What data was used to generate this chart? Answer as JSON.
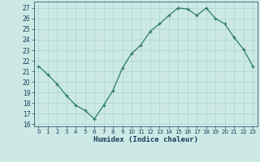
{
  "x": [
    0,
    1,
    2,
    3,
    4,
    5,
    6,
    7,
    8,
    9,
    10,
    11,
    12,
    13,
    14,
    15,
    16,
    17,
    18,
    19,
    20,
    21,
    22,
    23
  ],
  "y": [
    21.5,
    20.7,
    19.8,
    18.7,
    17.8,
    17.3,
    16.5,
    17.8,
    19.2,
    21.3,
    22.7,
    23.5,
    24.8,
    25.5,
    26.3,
    27.0,
    26.9,
    26.3,
    27.0,
    26.0,
    25.5,
    24.2,
    23.1,
    21.5
  ],
  "xlabel": "Humidex (Indice chaleur)",
  "xlim": [
    -0.5,
    23.5
  ],
  "ylim": [
    15.8,
    27.6
  ],
  "yticks": [
    16,
    17,
    18,
    19,
    20,
    21,
    22,
    23,
    24,
    25,
    26,
    27
  ],
  "xticks": [
    0,
    1,
    2,
    3,
    4,
    5,
    6,
    7,
    8,
    9,
    10,
    11,
    12,
    13,
    14,
    15,
    16,
    17,
    18,
    19,
    20,
    21,
    22,
    23
  ],
  "line_color": "#2d7a6a",
  "marker": "+",
  "bg_color": "#cce9e6",
  "grid_color": "#aad4d0",
  "tick_color": "#1a3c5a",
  "xlabel_color": "#1a3c5a"
}
